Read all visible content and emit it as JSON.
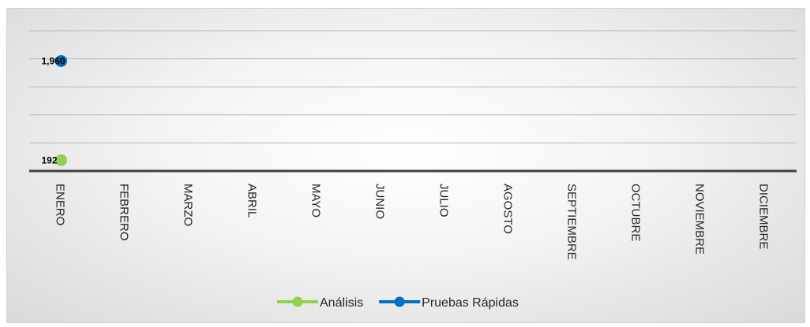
{
  "chart_data": {
    "type": "line",
    "title": "",
    "xlabel": "",
    "ylabel": "",
    "categories": [
      "ENERO",
      "FEBRERO",
      "MARZO",
      "ABRIL",
      "MAYO",
      "JUNIO",
      "JULIO",
      "AGOSTO",
      "SEPTIEMBRE",
      "OCTUBRE",
      "NOVIEMBRE",
      "DICIEMBRE"
    ],
    "ylim": [
      0,
      2500
    ],
    "grid": true,
    "legend_position": "bottom",
    "series": [
      {
        "name": "Análisis",
        "color": "#92d050",
        "values": [
          192,
          null,
          null,
          null,
          null,
          null,
          null,
          null,
          null,
          null,
          null,
          null
        ],
        "labels": [
          "192"
        ]
      },
      {
        "name": "Pruebas Rápidas",
        "color": "#0070c0",
        "values": [
          1960,
          null,
          null,
          null,
          null,
          null,
          null,
          null,
          null,
          null,
          null,
          null
        ],
        "labels": [
          "1,960"
        ]
      }
    ]
  }
}
